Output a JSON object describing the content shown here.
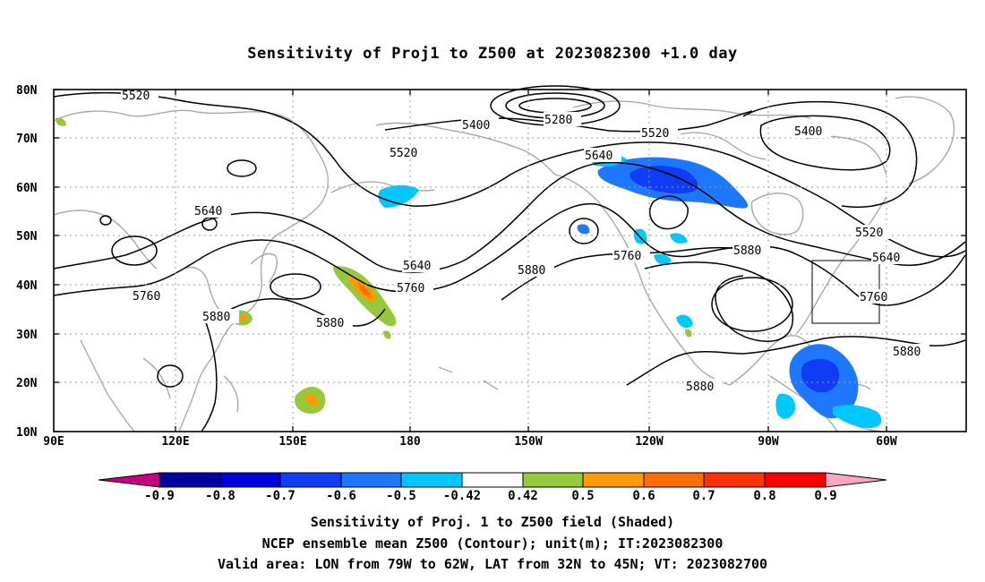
{
  "title": "Sensitivity of Proj1 to Z500 at 2023082300 +1.0 day",
  "lat_labels": [
    "80N",
    "70N",
    "60N",
    "50N",
    "40N",
    "30N",
    "20N",
    "10N"
  ],
  "lon_labels": [
    "90E",
    "120E",
    "150E",
    "180",
    "150W",
    "120W",
    "90W",
    "60W"
  ],
  "contour_labels": [
    "5520",
    "5400",
    "5280",
    "5520",
    "5400",
    "5520",
    "5640",
    "5640",
    "5520",
    "5640",
    "5760",
    "5640",
    "5760",
    "5880",
    "5880",
    "5760",
    "5760",
    "5880",
    "5880",
    "5880"
  ],
  "colorbar": {
    "labels": [
      "-0.9",
      "-0.8",
      "-0.7",
      "-0.6",
      "-0.5",
      "-0.42",
      "0.42",
      "0.5",
      "0.6",
      "0.7",
      "0.8",
      "0.9"
    ],
    "colors": [
      "#c8007d",
      "#0000a0",
      "#0000dc",
      "#0f3cf5",
      "#1e78ff",
      "#00c8ff",
      "#ffffff",
      "#96c83c",
      "#ff9b00",
      "#ff6e00",
      "#ff3200",
      "#ff0000",
      "#f7a6c4"
    ]
  },
  "captions": {
    "line1": "Sensitivity of Proj. 1 to Z500 field (Shaded)",
    "line2": "NCEP ensemble mean Z500 (Contour); unit(m); IT:2023082300",
    "line3": "Valid area: LON from 79W to 62W, LAT from 32N to 45N; VT: 2023082700"
  }
}
